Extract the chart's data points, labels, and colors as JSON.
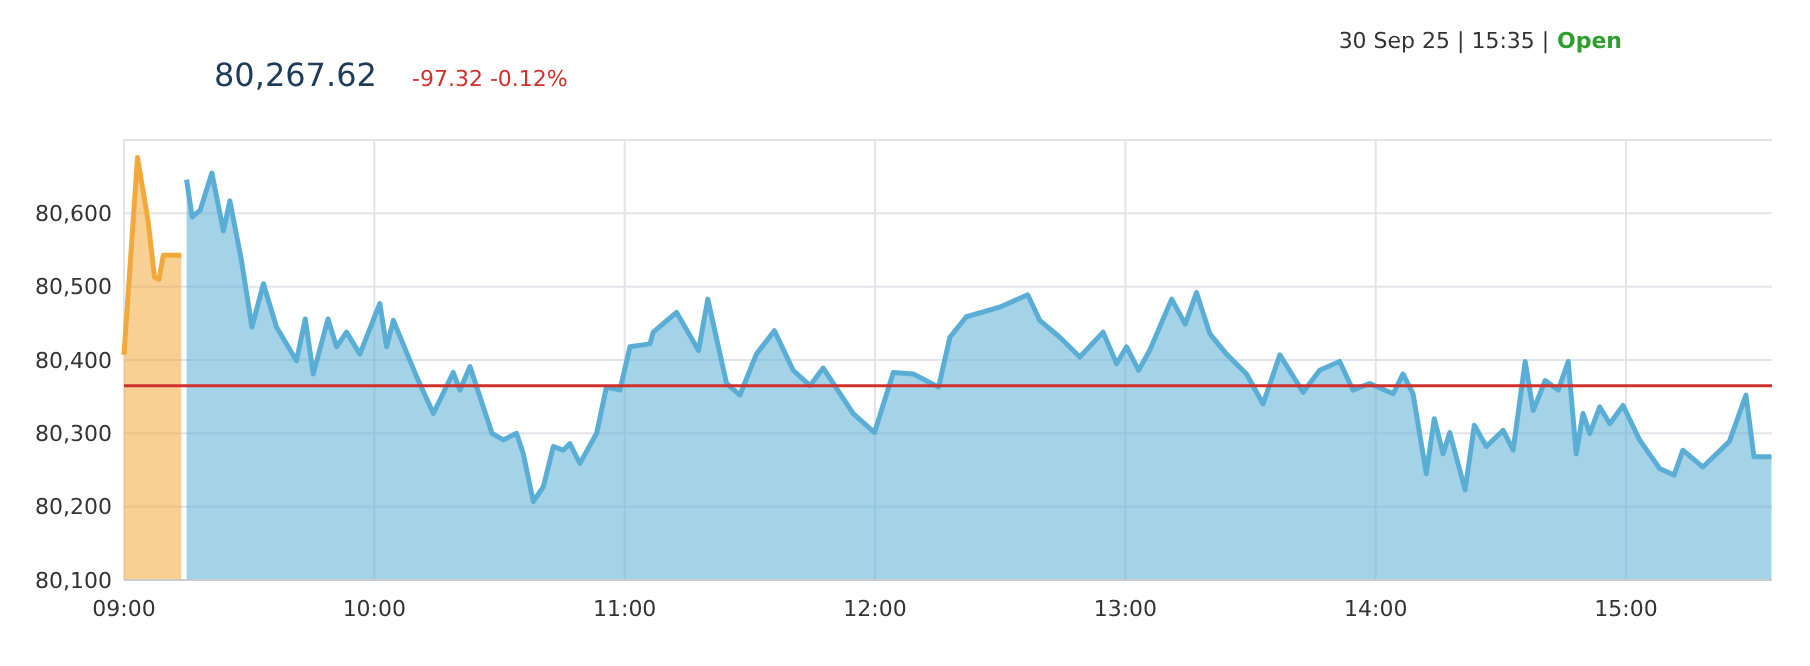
{
  "chart_data": {
    "type": "area",
    "title": "80,267.62",
    "subtitle": "-97.32 -0.12%",
    "annotations": [
      "30 Sep 25 | 15:35 |",
      "Open"
    ],
    "xlim": [
      9,
      15.583
    ],
    "xticks": [
      {
        "value": 9,
        "label": "09:00"
      },
      {
        "value": 10,
        "label": "10:00"
      },
      {
        "value": 11,
        "label": "11:00"
      },
      {
        "value": 12,
        "label": "12:00"
      },
      {
        "value": 13,
        "label": "13:00"
      },
      {
        "value": 14,
        "label": "14:00"
      },
      {
        "value": 15,
        "label": "15:00"
      }
    ],
    "ylim": [
      80100,
      80700
    ],
    "yticks": [
      {
        "value": 80100,
        "label": "80,100"
      },
      {
        "value": 80200,
        "label": "80,200"
      },
      {
        "value": 80300,
        "label": "80,300"
      },
      {
        "value": 80400,
        "label": "80,400"
      },
      {
        "value": 80500,
        "label": "80,500"
      },
      {
        "value": 80600,
        "label": "80,600"
      },
      {
        "value": 80700,
        "label": null
      }
    ],
    "grid": true,
    "ref_lines": [
      {
        "axis": "y",
        "value": 80365,
        "color": "#d0312d"
      }
    ],
    "series": [
      {
        "color": "#f2a93b",
        "x": [
          9,
          9.054,
          9.096,
          9.122,
          9.14,
          9.157,
          9.229
        ],
        "values": [
          80407,
          80676,
          80590,
          80513,
          80510,
          80543,
          80543
        ]
      },
      {
        "color": "#5aaed6",
        "x": [
          9.25,
          9.272,
          9.304,
          9.351,
          9.397,
          9.423,
          9.469,
          9.511,
          9.557,
          9.609,
          9.689,
          9.724,
          9.756,
          9.815,
          9.849,
          9.889,
          9.942,
          10.022,
          10.049,
          10.076,
          10.169,
          10.236,
          10.315,
          10.342,
          10.382,
          10.47,
          10.515,
          10.568,
          10.595,
          10.635,
          10.675,
          10.715,
          10.755,
          10.781,
          10.821,
          10.888,
          10.927,
          10.981,
          11.021,
          11.101,
          11.114,
          11.207,
          11.295,
          11.332,
          11.407,
          11.46,
          11.526,
          11.598,
          11.673,
          11.74,
          11.793,
          11.913,
          11.998,
          12.073,
          12.153,
          12.254,
          12.299,
          12.365,
          12.498,
          12.61,
          12.658,
          12.738,
          12.818,
          12.911,
          12.965,
          13.005,
          13.053,
          13.097,
          13.185,
          13.239,
          13.284,
          13.337,
          13.404,
          13.484,
          13.55,
          13.617,
          13.71,
          13.776,
          13.856,
          13.909,
          13.976,
          14.07,
          14.109,
          14.149,
          14.202,
          14.234,
          14.269,
          14.296,
          14.357,
          14.394,
          14.442,
          14.509,
          14.549,
          14.597,
          14.629,
          14.677,
          14.729,
          14.769,
          14.801,
          14.828,
          14.855,
          14.895,
          14.935,
          14.988,
          15.054,
          15.134,
          15.192,
          15.227,
          15.307,
          15.413,
          15.479,
          15.511,
          15.581
        ],
        "values": [
          80646,
          80595,
          80604,
          80655,
          80576,
          80617,
          80536,
          80445,
          80504,
          80445,
          80399,
          80456,
          80381,
          80456,
          80418,
          80438,
          80408,
          80477,
          80418,
          80454,
          80377,
          80327,
          80383,
          80359,
          80391,
          80300,
          80291,
          80300,
          80272,
          80207,
          80227,
          80282,
          80277,
          80286,
          80259,
          80300,
          80363,
          80359,
          80418,
          80422,
          80438,
          80465,
          80413,
          80483,
          80368,
          80352,
          80408,
          80440,
          80386,
          80365,
          80389,
          80327,
          80301,
          80383,
          80381,
          80363,
          80431,
          80459,
          80472,
          80489,
          80454,
          80431,
          80404,
          80438,
          80395,
          80418,
          80386,
          80413,
          80483,
          80449,
          80492,
          80436,
          80408,
          80381,
          80340,
          80407,
          80356,
          80386,
          80398,
          80359,
          80368,
          80354,
          80381,
          80354,
          80245,
          80320,
          80272,
          80301,
          80223,
          80311,
          80282,
          80304,
          80277,
          80398,
          80331,
          80372,
          80359,
          80398,
          80272,
          80327,
          80300,
          80336,
          80313,
          80338,
          80291,
          80252,
          80243,
          80277,
          80254,
          80289,
          80352,
          80268,
          80268
        ]
      }
    ]
  }
}
